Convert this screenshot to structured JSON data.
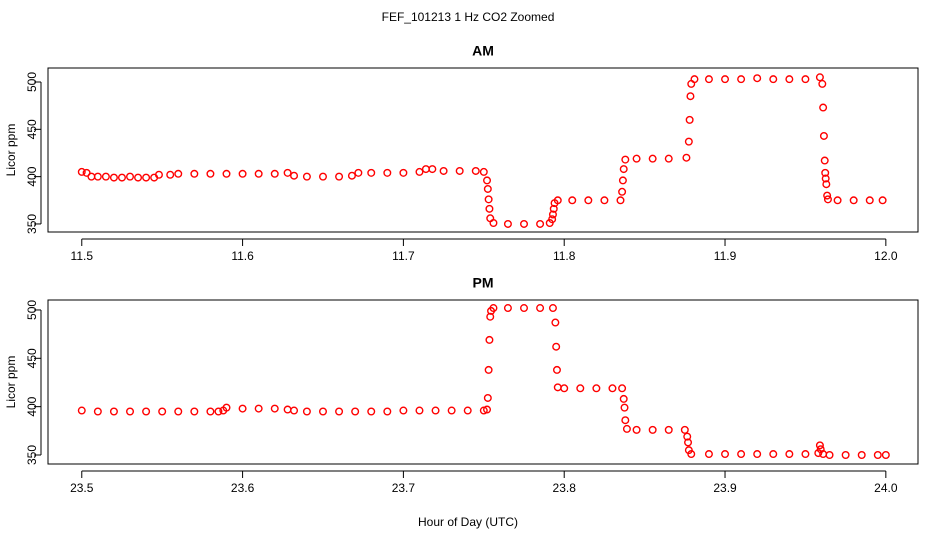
{
  "title": "FEF_101213 1 Hz CO2 Zoomed",
  "xlabel": "Hour of Day (UTC)",
  "chart_data": [
    {
      "type": "scatter",
      "title": "AM",
      "ylabel": "Licor ppm",
      "color": "#ff0000",
      "xlim": [
        11.479,
        12.02
      ],
      "ylim": [
        341.5,
        514.8
      ],
      "xticks": [
        11.5,
        11.6,
        11.7,
        11.8,
        11.9,
        {
          "value": 12,
          "label": "12.0"
        }
      ],
      "yticks": [
        350,
        400,
        450,
        500
      ],
      "x": [
        11.5,
        11.503,
        11.506,
        11.51,
        11.515,
        11.52,
        11.525,
        11.53,
        11.535,
        11.54,
        11.545,
        11.548,
        11.555,
        11.56,
        11.57,
        11.58,
        11.59,
        11.6,
        11.61,
        11.62,
        11.628,
        11.632,
        11.64,
        11.65,
        11.66,
        11.668,
        11.672,
        11.68,
        11.69,
        11.7,
        11.71,
        11.714,
        11.718,
        11.725,
        11.735,
        11.745,
        11.75,
        11.752,
        11.7525,
        11.753,
        11.7535,
        11.754,
        11.756,
        11.765,
        11.775,
        11.785,
        11.791,
        11.7925,
        11.793,
        11.7935,
        11.794,
        11.796,
        11.805,
        11.815,
        11.825,
        11.835,
        11.836,
        11.8365,
        11.837,
        11.838,
        11.845,
        11.855,
        11.865,
        11.876,
        11.8775,
        11.878,
        11.8785,
        11.879,
        11.881,
        11.89,
        11.9,
        11.91,
        11.92,
        11.93,
        11.94,
        11.95,
        11.959,
        11.9605,
        11.961,
        11.9615,
        11.962,
        11.9623,
        11.9626,
        11.963,
        11.9635,
        11.964,
        11.97,
        11.98,
        11.99,
        11.998
      ],
      "values": [
        405,
        404,
        400,
        400,
        400,
        399,
        399,
        400,
        399,
        399,
        399,
        402,
        402,
        403,
        403,
        403,
        403,
        403,
        403,
        403,
        404,
        401,
        400,
        400,
        400,
        401,
        404,
        404,
        404,
        404,
        405,
        408,
        408,
        406,
        406,
        406,
        405,
        396,
        387,
        376,
        366,
        356,
        351,
        350,
        350,
        350,
        351,
        355,
        360,
        366,
        372,
        375,
        375,
        375,
        375,
        375,
        384,
        396,
        408,
        418,
        419,
        419,
        419,
        420,
        437,
        460,
        485,
        498,
        503,
        503,
        503,
        503,
        504,
        503,
        503,
        503,
        505,
        498,
        473,
        443,
        417,
        404,
        398,
        392,
        380,
        376,
        375,
        375,
        375,
        375
      ]
    },
    {
      "type": "scatter",
      "title": "PM",
      "ylabel": "Licor ppm",
      "color": "#ff0000",
      "xlim": [
        23.479,
        24.02
      ],
      "ylim": [
        340.7,
        510.3
      ],
      "xticks": [
        23.5,
        23.6,
        23.7,
        23.8,
        23.9,
        {
          "value": 24,
          "label": "24.0"
        }
      ],
      "yticks": [
        350,
        400,
        450,
        500
      ],
      "x": [
        23.5,
        23.51,
        23.52,
        23.53,
        23.54,
        23.55,
        23.56,
        23.57,
        23.58,
        23.585,
        23.588,
        23.59,
        23.6,
        23.61,
        23.62,
        23.628,
        23.632,
        23.64,
        23.65,
        23.66,
        23.67,
        23.68,
        23.69,
        23.7,
        23.71,
        23.72,
        23.73,
        23.74,
        23.75,
        23.752,
        23.7525,
        23.753,
        23.7535,
        23.754,
        23.7545,
        23.756,
        23.765,
        23.775,
        23.785,
        23.793,
        23.7945,
        23.795,
        23.7955,
        23.796,
        23.8,
        23.81,
        23.82,
        23.83,
        23.836,
        23.837,
        23.8375,
        23.838,
        23.839,
        23.845,
        23.855,
        23.865,
        23.875,
        23.8765,
        23.877,
        23.8775,
        23.879,
        23.89,
        23.9,
        23.91,
        23.92,
        23.93,
        23.94,
        23.95,
        23.958,
        23.959,
        23.9595,
        23.961,
        23.965,
        23.975,
        23.985,
        23.995,
        24.0
      ],
      "values": [
        396,
        395,
        395,
        395,
        395,
        395,
        395,
        395,
        395,
        395,
        396,
        399,
        398,
        398,
        398,
        397,
        396,
        395,
        395,
        395,
        395,
        395,
        395,
        396,
        396,
        396,
        396,
        396,
        396,
        397,
        409,
        438,
        469,
        493,
        499,
        502,
        502,
        502,
        502,
        502,
        487,
        462,
        438,
        420,
        419,
        419,
        419,
        419,
        419,
        408,
        399,
        386,
        377,
        376,
        376,
        376,
        376,
        369,
        363,
        355,
        351,
        351,
        351,
        351,
        351,
        351,
        351,
        351,
        352,
        360,
        356,
        351,
        350,
        350,
        350,
        350,
        350
      ]
    }
  ]
}
